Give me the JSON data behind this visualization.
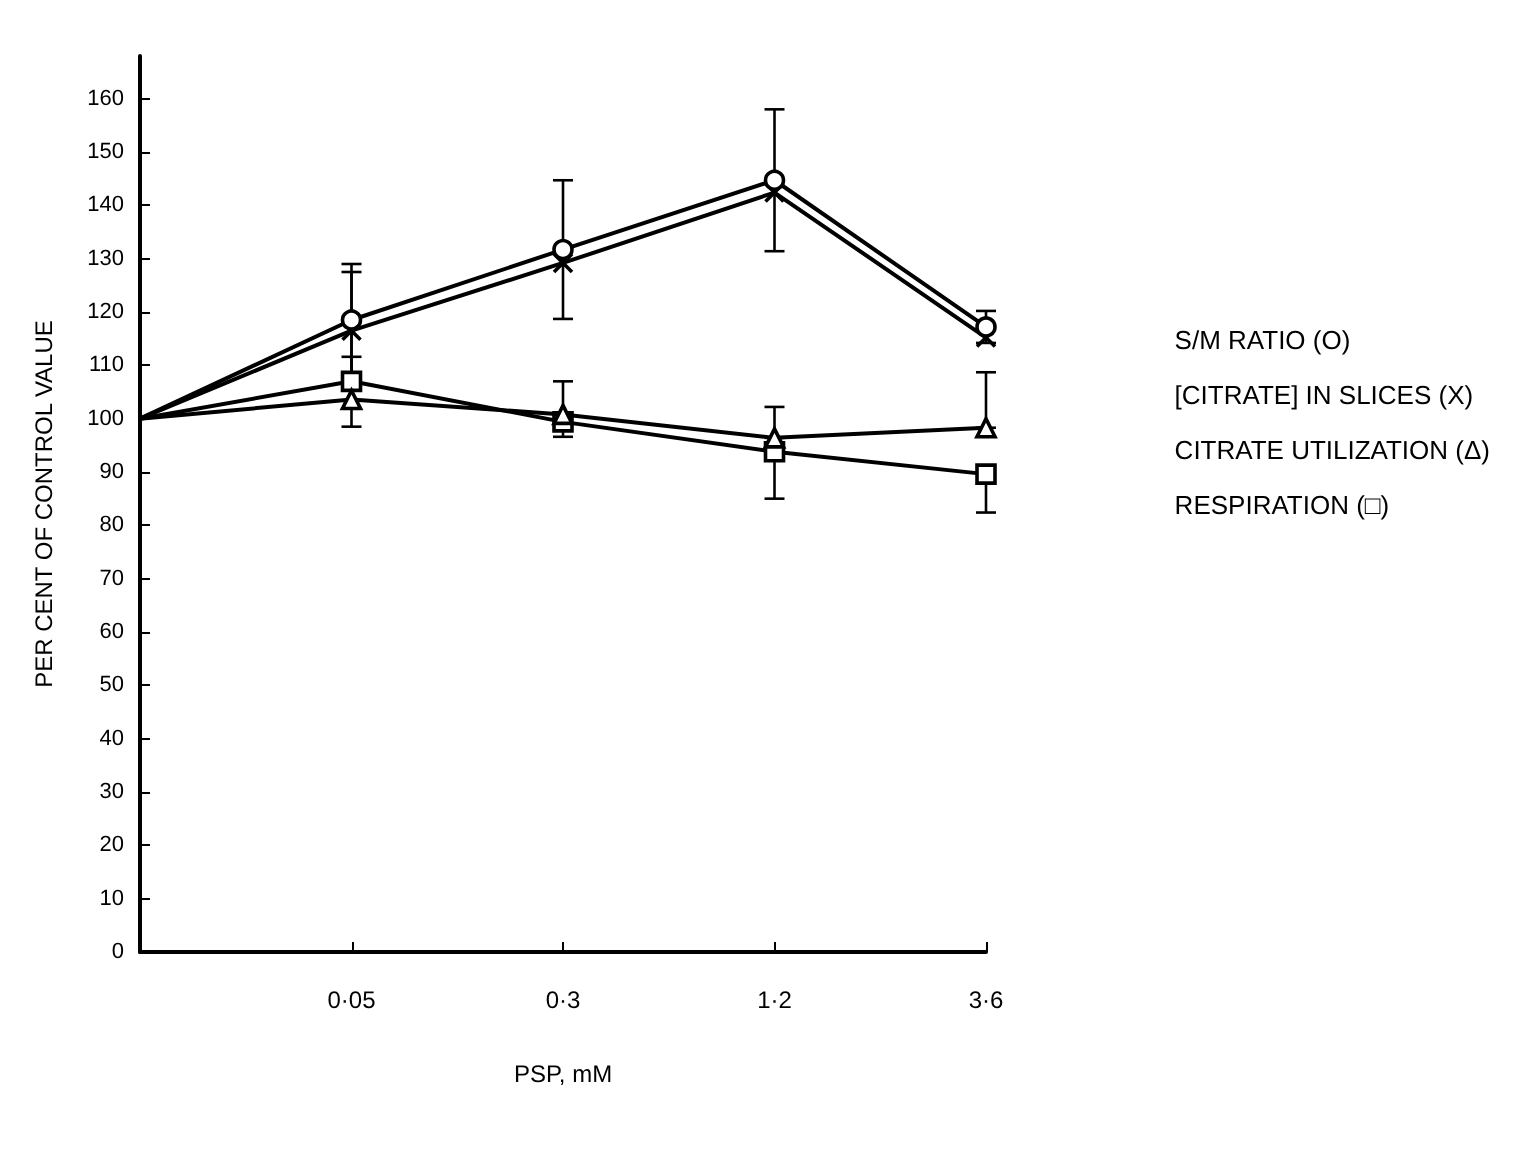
{
  "chart_data": {
    "type": "line",
    "xlabel": "PSP, mM",
    "ylabel": "PER CENT OF CONTROL VALUE",
    "categories": [
      null,
      "0·05",
      "0·3",
      "1·2",
      "3·6"
    ],
    "ylim": [
      0,
      168
    ],
    "yticks": [
      0,
      10,
      20,
      30,
      40,
      50,
      60,
      70,
      80,
      90,
      100,
      110,
      120,
      130,
      140,
      150,
      160
    ],
    "grid": false,
    "legend": "right",
    "series": [
      {
        "name": "S/M RATIO (O)",
        "color": "#000000",
        "marker": "circle",
        "values": [
          100,
          118.5,
          131.7,
          144.7,
          117.2
        ],
        "errors": [
          null,
          10.5,
          13,
          13.3,
          3
        ]
      },
      {
        "name": "[CITRATE] IN SLICES (X)",
        "color": "#000000",
        "marker": "cross",
        "values": [
          100,
          116.5,
          129.2,
          142.4,
          115.2
        ],
        "errors": [
          null,
          11,
          null,
          null,
          null
        ]
      },
      {
        "name": "CITRATE UTILIZATION (Δ)",
        "color": "#000000",
        "marker": "triangle",
        "values": [
          100,
          103.6,
          100.8,
          96.4,
          98.3
        ],
        "errors": [
          null,
          null,
          [
            100.8,
            107
          ],
          [
            96.4,
            102.2
          ],
          [
            98.3,
            108.7
          ]
        ]
      },
      {
        "name": "RESPIRATION (□)",
        "color": "#000000",
        "marker": "square",
        "values": [
          100,
          107,
          99.4,
          93.8,
          89.6
        ],
        "errors": [
          null,
          [
            98.5,
            111.6
          ],
          [
            96.6,
            99.4
          ],
          [
            85,
            93.8
          ],
          [
            82.4,
            89.6
          ]
        ]
      }
    ]
  }
}
